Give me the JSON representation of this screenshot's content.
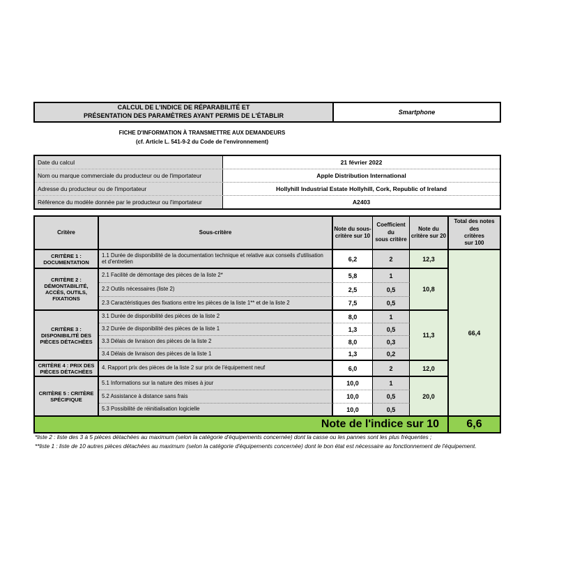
{
  "colors": {
    "cell_gray": "#d9d9d9",
    "light_green": "#e2efda",
    "bright_green": "#92d050",
    "border": "#000000"
  },
  "header": {
    "title_line1": "CALCUL DE L'INDICE DE RÉPARABILITÉ ET",
    "title_line2": "PRÉSENTATION DES PARAMÈTRES AYANT PERMIS DE L'ÉTABLIR",
    "category_label": "Smartphone",
    "subtitle_line1": "FICHE D'INFORMATION À TRANSMETTRE AUX DEMANDEURS",
    "subtitle_line2": "(cf. Article L. 541-9-2 du Code de l'environnement)"
  },
  "info_table": {
    "rows": [
      {
        "label": "Date du calcul",
        "value": "21 février 2022"
      },
      {
        "label": "Nom ou marque commerciale du producteur ou de l'importateur",
        "value": "Apple Distribution International"
      },
      {
        "label": "Adresse du producteur ou de l'importateur",
        "value": "Hollyhill Industrial Estate Hollyhill, Cork, Republic of Ireland"
      },
      {
        "label": "Référence du modèle donnée par le producteur ou l'importateur",
        "value": "A2403"
      }
    ]
  },
  "score_table": {
    "headers": {
      "col1": "Critère",
      "col2": "Sous-critère",
      "col3": "Note du sous-\ncritère sur 10",
      "col4": "Coefficient du\nsous critère",
      "col5": "Note du\ncritère sur 20",
      "col6": "Total des notes des\ncritères\nsur 100"
    },
    "groups": [
      {
        "name": "CRITÈRE 1 : DOCUMENTATION",
        "criterion_note": "12,3",
        "subrows": [
          {
            "label": "1.1 Durée de disponibilité de la documentation technique et relative aux conseils d'utilisation et d'entretien",
            "note": "6,2",
            "coefficient": "2"
          }
        ]
      },
      {
        "name": "CRITÈRE 2 : DÉMONTABILITÉ, ACCÈS, OUTILS, FIXATIONS",
        "criterion_note": "10,8",
        "subrows": [
          {
            "label": "2.1 Facilité de démontage des pièces de la liste 2*",
            "note": "5,8",
            "coefficient": "1"
          },
          {
            "label": "2.2 Outils nécessaires (liste 2)",
            "note": "2,5",
            "coefficient": "0,5"
          },
          {
            "label": "2.3 Caractéristiques des fixations entre les pièces de la liste 1** et de la liste 2",
            "note": "7,5",
            "coefficient": "0,5"
          }
        ]
      },
      {
        "name": "CRITÈRE 3 : DISPONIBILITÉ DES PIÈCES DÉTACHÉES",
        "criterion_note": "11,3",
        "subrows": [
          {
            "label": "3.1 Durée de disponibilité des pièces de la liste 2",
            "note": "8,0",
            "coefficient": "1"
          },
          {
            "label": "3.2 Durée de disponibilité des pièces de la liste 1",
            "note": "1,3",
            "coefficient": "0,5"
          },
          {
            "label": "3.3 Délais de livraison des pièces de la liste 2",
            "note": "8,0",
            "coefficient": "0,3"
          },
          {
            "label": "3.4 Délais de livraison des pièces de la liste 1",
            "note": "1,3",
            "coefficient": "0,2"
          }
        ]
      },
      {
        "name": "CRITÈRE 4 : PRIX DES PIÈCES DÉTACHÉES",
        "criterion_note": "12,0",
        "subrows": [
          {
            "label": "4. Rapport prix des pièces de la liste 2 sur prix de l'équipement neuf",
            "note": "6,0",
            "coefficient": "2"
          }
        ]
      },
      {
        "name": "CRITÈRE 5 : CRITÈRE SPÉCIFIQUE",
        "criterion_note": "20,0",
        "subrows": [
          {
            "label": "5.1 Informations sur la nature des mises à jour",
            "note": "10,0",
            "coefficient": "1"
          },
          {
            "label": "5.2 Assistance à distance sans frais",
            "note": "10,0",
            "coefficient": "0,5"
          },
          {
            "label": "5.3 Possibilité de réinitialisation logicielle",
            "note": "10,0",
            "coefficient": "0,5"
          }
        ]
      }
    ],
    "total_of_criteria": "66,4"
  },
  "index_row": {
    "label": "Note de l'indice sur 10",
    "value": "6,6"
  },
  "footnotes": [
    "*liste 2 : liste des 3 à 5 pièces détachées au maximum (selon la catégorie d'équipements concernée) dont la casse ou les pannes sont les plus fréquentes ;",
    "**liste 1 : liste de 10 autres pièces détachées au maximum (selon la catégorie d'équipements concernée) dont le bon état est nécessaire au fonctionnement de l'équipement."
  ]
}
